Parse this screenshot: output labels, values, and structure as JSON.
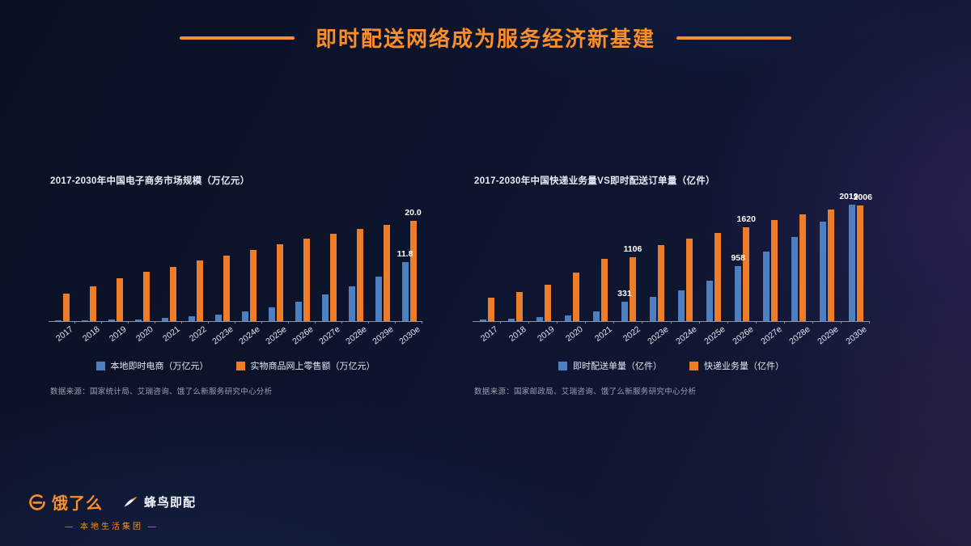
{
  "title": "即时配送网络成为服务经济新基建",
  "accent_color": "#F98E2B",
  "bar_colors": {
    "blue": "#4e7fc0",
    "orange": "#ee7d2a"
  },
  "chart_data": [
    {
      "type": "bar",
      "title": "2017-2030年中国电子商务市场规模（万亿元）",
      "categories": [
        "2017",
        "2018",
        "2019",
        "2020",
        "2021",
        "2022",
        "2023e",
        "2024e",
        "2025e",
        "2026e",
        "2027e",
        "2028e",
        "2029e",
        "2030e"
      ],
      "series": [
        {
          "name": "本地即时电商（万亿元）",
          "color": "#4e7fc0",
          "values": [
            0.1,
            0.15,
            0.25,
            0.4,
            0.6,
            0.9,
            1.3,
            1.9,
            2.7,
            3.8,
            5.3,
            7.0,
            8.9,
            11.8
          ],
          "value_labels": {
            "13": "11.8"
          }
        },
        {
          "name": "实物商品网上零售额（万亿元）",
          "color": "#ee7d2a",
          "values": [
            5.5,
            7.0,
            8.5,
            9.8,
            10.8,
            12.0,
            13.0,
            14.2,
            15.3,
            16.4,
            17.4,
            18.3,
            19.2,
            20.0
          ],
          "value_labels": {
            "13": "20.0"
          }
        }
      ],
      "ymax": 20.6,
      "ylim": [
        0,
        20.6
      ],
      "grid": false,
      "legend_position": "bottom",
      "source": "数据来源：国家统计局、艾瑞咨询、饿了么新服务研究中心分析"
    },
    {
      "type": "bar",
      "title": "2017-2030年中国快递业务量VS即时配送订单量（亿件）",
      "categories": [
        "2017",
        "2018",
        "2019",
        "2020",
        "2021",
        "2022",
        "2023e",
        "2024e",
        "2025e",
        "2026e",
        "2027e",
        "2028e",
        "2029e",
        "2030e"
      ],
      "series": [
        {
          "name": "即时配送单量（亿件）",
          "color": "#4e7fc0",
          "values": [
            25,
            45,
            70,
            100,
            165,
            331,
            420,
            530,
            700,
            958,
            1200,
            1450,
            1720,
            2019
          ],
          "value_labels": {
            "5": "331",
            "9": "958",
            "13": "2019"
          }
        },
        {
          "name": "快递业务量（亿件）",
          "color": "#ee7d2a",
          "values": [
            401,
            507,
            635,
            834,
            1083,
            1106,
            1320,
            1430,
            1530,
            1620,
            1750,
            1850,
            1930,
            2006
          ],
          "value_labels": {
            "5": "1106",
            "9": "1620",
            "13": "2006"
          }
        }
      ],
      "ymax": 2100,
      "ylim": [
        0,
        2100
      ],
      "grid": false,
      "legend_position": "bottom",
      "source": "数据来源：国家邮政局、艾瑞咨询、饿了么新服务研究中心分析"
    }
  ],
  "footer": {
    "brand1": "饿了么",
    "brand2": "蜂鸟即配",
    "tagline": "— 本地生活集团 —"
  }
}
